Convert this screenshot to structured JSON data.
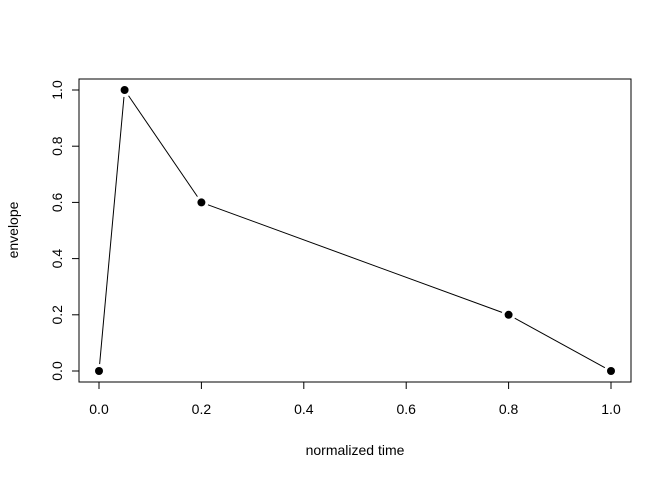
{
  "chart_data": {
    "type": "line",
    "style": "points-and-lines",
    "title": "",
    "xlabel": "normalized time",
    "ylabel": "envelope",
    "x": [
      0,
      0.05,
      0.2,
      0.8,
      1.0
    ],
    "y": [
      0,
      1.0,
      0.6,
      0.2,
      0
    ],
    "xlim": [
      0,
      1
    ],
    "ylim": [
      0,
      1
    ],
    "xticks": [
      "0.0",
      "0.2",
      "0.4",
      "0.6",
      "0.8",
      "1.0"
    ],
    "yticks": [
      "0.0",
      "0.2",
      "0.4",
      "0.6",
      "0.8",
      "1.0"
    ],
    "grid": false,
    "color": "#000000"
  }
}
